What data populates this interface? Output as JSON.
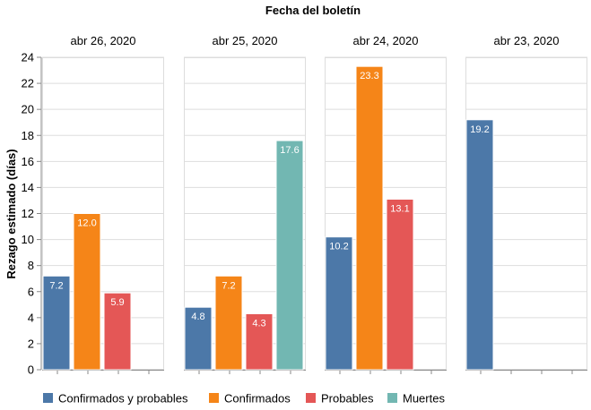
{
  "chart_data": {
    "type": "bar",
    "title": "Fecha del boletín",
    "ylabel": "Rezago estimado (días)",
    "ylim": [
      0,
      24
    ],
    "yticks": [
      0,
      2,
      4,
      6,
      8,
      10,
      12,
      14,
      16,
      18,
      20,
      22,
      24
    ],
    "grid": true,
    "legend_position": "bottom",
    "series": [
      {
        "name": "Confirmados y probables",
        "color": "#4c78a8"
      },
      {
        "name": "Confirmados",
        "color": "#f58518"
      },
      {
        "name": "Probables",
        "color": "#e45756"
      },
      {
        "name": "Muertes",
        "color": "#72b7b2"
      }
    ],
    "facets": [
      {
        "label": "abr 26, 2020",
        "values": [
          7.2,
          12.0,
          5.9,
          null
        ],
        "value_labels": [
          "7.2",
          "12.0",
          "5.9",
          null
        ]
      },
      {
        "label": "abr 25, 2020",
        "values": [
          4.8,
          7.2,
          4.3,
          17.6
        ],
        "value_labels": [
          "4.8",
          "7.2",
          "4.3",
          "17.6"
        ]
      },
      {
        "label": "abr 24, 2020",
        "values": [
          10.2,
          23.3,
          13.1,
          null
        ],
        "value_labels": [
          "10.2",
          "23.3",
          "13.1",
          null
        ]
      },
      {
        "label": "abr 23, 2020",
        "values": [
          19.2,
          null,
          null,
          null
        ],
        "value_labels": [
          "19.2",
          null,
          null,
          null
        ]
      }
    ]
  }
}
